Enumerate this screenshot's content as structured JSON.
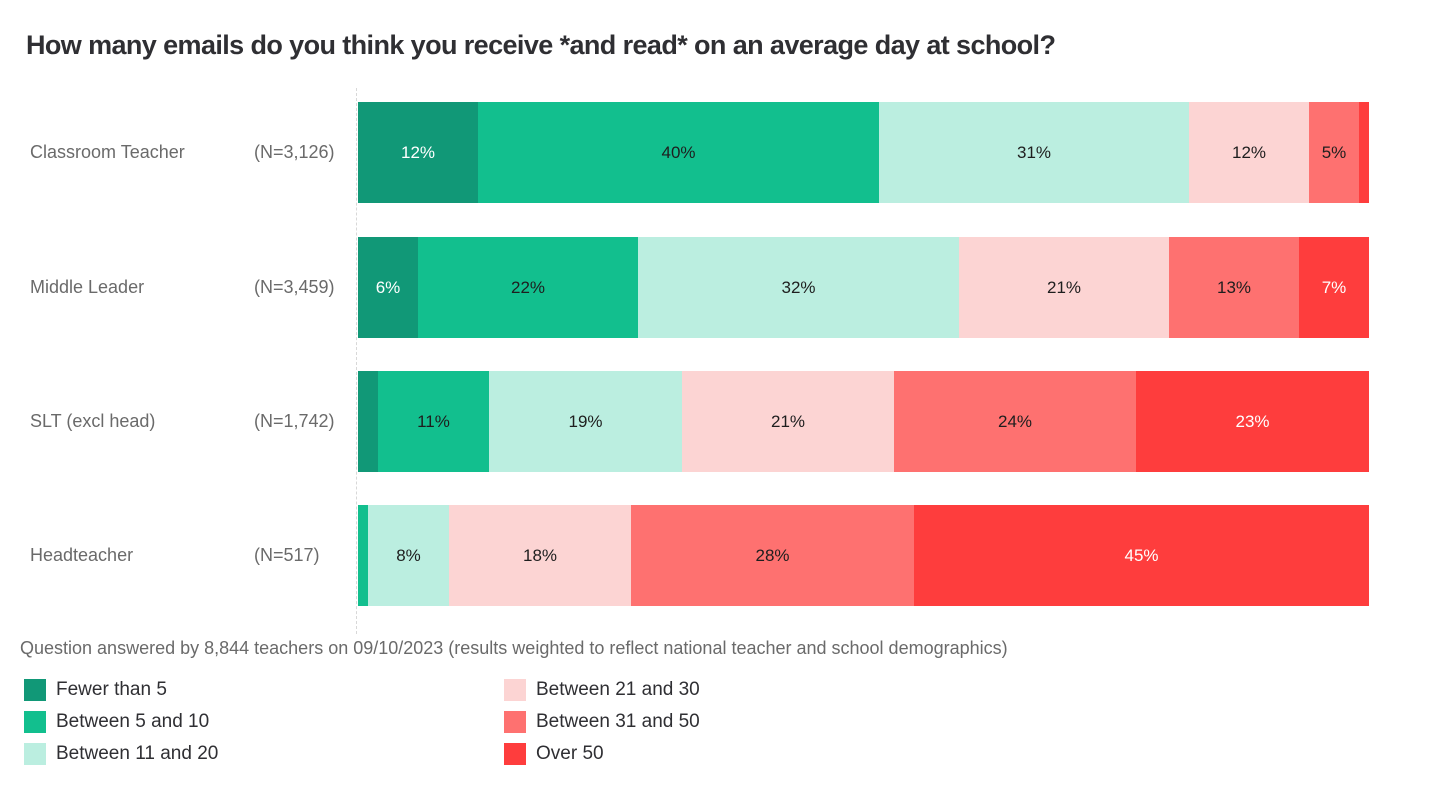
{
  "chart_data": {
    "type": "bar",
    "orientation": "horizontal",
    "stacked": true,
    "normalized": true,
    "title": "How many emails do you think you receive *and read* on an average day at school?",
    "xlabel": "",
    "ylabel": "",
    "xlim": [
      0,
      100
    ],
    "grid": false,
    "legend_position": "bottom",
    "categories": [
      {
        "label": "Classroom Teacher",
        "n": "(N=3,126)"
      },
      {
        "label": "Middle Leader",
        "n": "(N=3,459)"
      },
      {
        "label": "SLT (excl head)",
        "n": "(N=1,742)"
      },
      {
        "label": "Headteacher",
        "n": "(N=517)"
      }
    ],
    "series": [
      {
        "name": "Fewer than 5",
        "color": "#119877",
        "text_color": "#ffffff",
        "values": [
          12,
          6,
          2,
          0
        ],
        "labels": [
          "12%",
          "6%",
          "",
          ""
        ]
      },
      {
        "name": "Between 5 and 10",
        "color": "#12bf8e",
        "text_color": "#1e1e1e",
        "values": [
          40,
          22,
          11,
          1
        ],
        "labels": [
          "40%",
          "22%",
          "11%",
          ""
        ]
      },
      {
        "name": "Between 11 and 20",
        "color": "#bbeee0",
        "text_color": "#1e1e1e",
        "values": [
          31,
          32,
          19,
          8
        ],
        "labels": [
          "31%",
          "32%",
          "19%",
          "8%"
        ]
      },
      {
        "name": "Between 21 and 30",
        "color": "#fcd4d3",
        "text_color": "#1e1e1e",
        "values": [
          12,
          21,
          21,
          18
        ],
        "labels": [
          "12%",
          "21%",
          "21%",
          "18%"
        ]
      },
      {
        "name": "Between 31 and 50",
        "color": "#fe7170",
        "text_color": "#1e1e1e",
        "values": [
          5,
          13,
          24,
          28
        ],
        "labels": [
          "5%",
          "13%",
          "24%",
          "28%"
        ]
      },
      {
        "name": "Over 50",
        "color": "#fe3d3d",
        "text_color": "#ffffff",
        "values": [
          1,
          7,
          23,
          45
        ],
        "labels": [
          "",
          "7%",
          "23%",
          "45%"
        ]
      }
    ],
    "footnote": "Question answered by 8,844 teachers on 09/10/2023 (results weighted to reflect national teacher and school demographics)"
  }
}
